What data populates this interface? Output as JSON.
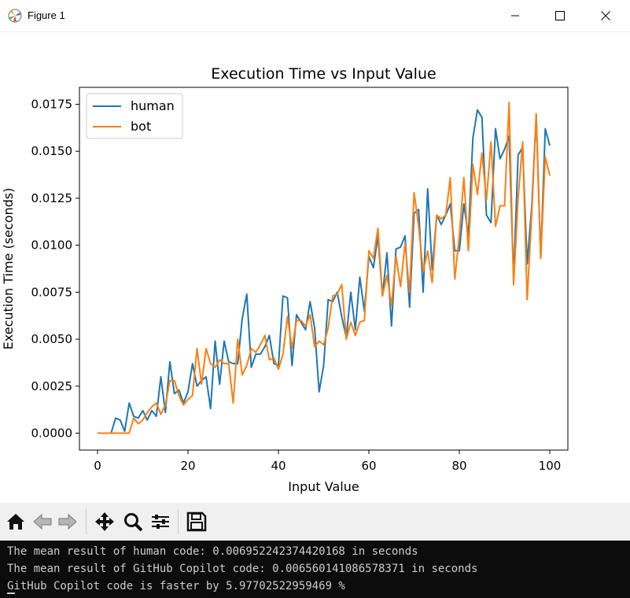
{
  "window": {
    "title": "Figure 1"
  },
  "toolbar": {
    "buttons": [
      {
        "name": "home-icon"
      },
      {
        "name": "back-arrow-icon"
      },
      {
        "name": "forward-arrow-icon"
      },
      {
        "name": "pan-icon"
      },
      {
        "name": "zoom-icon"
      },
      {
        "name": "subplots-icon"
      },
      {
        "name": "save-icon"
      }
    ]
  },
  "console": {
    "lines": [
      "The mean result of human code: 0.006952242374420168 in seconds",
      "The mean result of GitHub Copilot code: 0.006560141086578371 in seconds",
      "GitHub Copilot code is faster by 5.97702522959469 %"
    ]
  },
  "colors": {
    "human": "#1f77b4",
    "bot": "#ff7f0e"
  },
  "chart_data": {
    "type": "line",
    "title": "Execution Time vs Input Value",
    "xlabel": "Input Value",
    "ylabel": "Execution Time (seconds)",
    "xlim": [
      -4,
      104
    ],
    "ylim": [
      -0.0009,
      0.0184
    ],
    "xticks": [
      "0",
      "20",
      "40",
      "60",
      "80",
      "100"
    ],
    "yticks": [
      "0.0000",
      "0.0025",
      "0.0050",
      "0.0075",
      "0.0100",
      "0.0125",
      "0.0150",
      "0.0175"
    ],
    "legend_position": "top-left",
    "series": [
      {
        "name": "human",
        "values": [
          0,
          0,
          0,
          0,
          0.0008,
          0.0007,
          0.0001,
          0.0016,
          0.0009,
          0.0008,
          0.0012,
          0.0007,
          0.0012,
          0.0009,
          0.003,
          0.0011,
          0.0038,
          0.0021,
          0.0023,
          0.0016,
          0.0022,
          0.0037,
          0.0025,
          0.0028,
          0.003,
          0.0013,
          0.0049,
          0.0026,
          0.0049,
          0.0038,
          0.0037,
          0.0037,
          0.0061,
          0.0074,
          0.0035,
          0.0042,
          0.0042,
          0.0046,
          0.0052,
          0.0037,
          0.0036,
          0.0073,
          0.0072,
          0.0036,
          0.0063,
          0.0059,
          0.0055,
          0.007,
          0.0056,
          0.0022,
          0.0036,
          0.0071,
          0.007,
          0.0075,
          0.0062,
          0.0051,
          0.0075,
          0.0055,
          0.0083,
          0.0065,
          0.0094,
          0.0088,
          0.0105,
          0.0073,
          0.0096,
          0.0057,
          0.0098,
          0.0099,
          0.0105,
          0.0067,
          0.0117,
          0.0119,
          0.0075,
          0.013,
          0.0087,
          0.0116,
          0.0111,
          0.0116,
          0.0122,
          0.0097,
          0.0097,
          0.0122,
          0.0105,
          0.0157,
          0.0172,
          0.0168,
          0.0116,
          0.0112,
          0.0162,
          0.0146,
          0.0151,
          0.0158,
          0.0082,
          0.0148,
          0.0152,
          0.009,
          0.012,
          0.0169,
          0.0093,
          0.0162,
          0.0153
        ]
      },
      {
        "name": "bot",
        "values": [
          0,
          0,
          0,
          0,
          0,
          0,
          0,
          0,
          0.0008,
          0.0005,
          0.0007,
          0.0011,
          0.0014,
          0.0016,
          0.001,
          0.0015,
          0.0028,
          0.0028,
          0.002,
          0.0015,
          0.0018,
          0.002,
          0.0045,
          0.0026,
          0.0045,
          0.0037,
          0.0035,
          0.0039,
          0.0037,
          0.0037,
          0.0016,
          0.005,
          0.0031,
          0.0036,
          0.0045,
          0.0043,
          0.0047,
          0.0052,
          0.0039,
          0.004,
          0.0034,
          0.0042,
          0.0062,
          0.0045,
          0.006,
          0.006,
          0.0057,
          0.0063,
          0.0046,
          0.0049,
          0.0047,
          0.0056,
          0.0073,
          0.0074,
          0.0079,
          0.005,
          0.0059,
          0.0052,
          0.0059,
          0.006,
          0.0097,
          0.0093,
          0.0109,
          0.0073,
          0.0084,
          0.0068,
          0.0094,
          0.0078,
          0.0101,
          0.0075,
          0.0128,
          0.011,
          0.0086,
          0.0097,
          0.008,
          0.0116,
          0.0114,
          0.0116,
          0.0136,
          0.0082,
          0.0105,
          0.0136,
          0.0097,
          0.0143,
          0.0127,
          0.0149,
          0.0124,
          0.0155,
          0.011,
          0.0121,
          0.0121,
          0.0176,
          0.0079,
          0.0125,
          0.0155,
          0.0071,
          0.0116,
          0.017,
          0.0093,
          0.0147,
          0.0137
        ]
      }
    ]
  }
}
